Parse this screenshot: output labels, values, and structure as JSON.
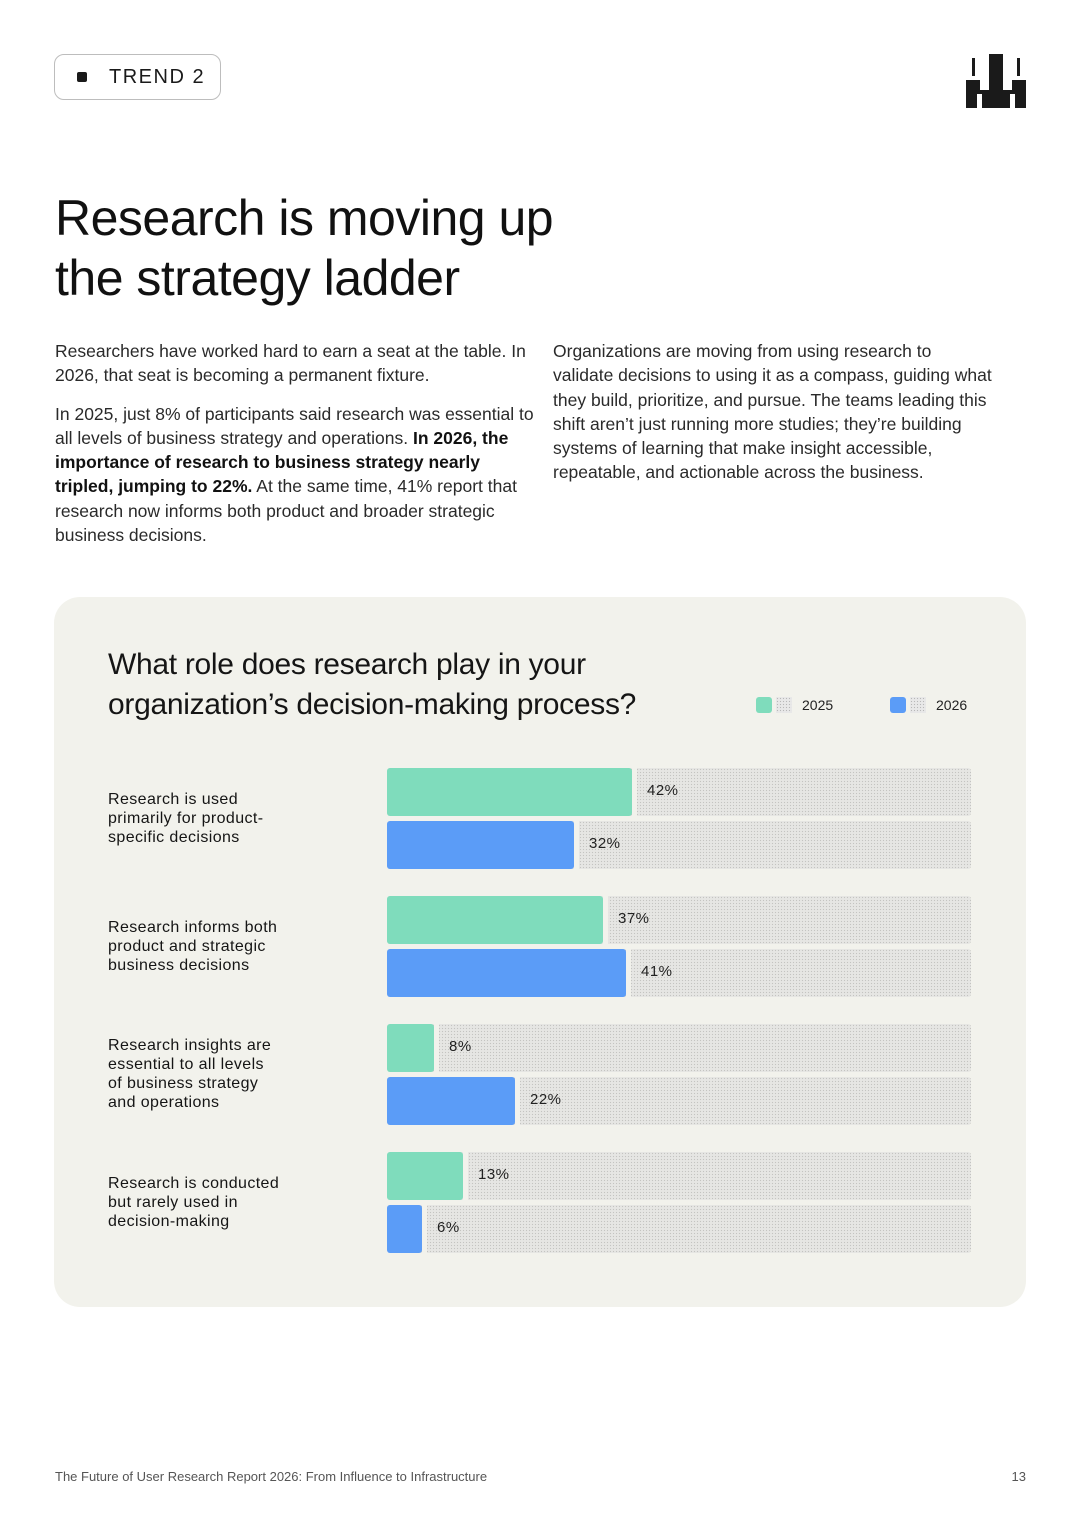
{
  "tag": {
    "label": "TREND 2"
  },
  "logo": {
    "icon": "brand-logo-icon"
  },
  "title": {
    "line1": "Research is moving up",
    "line2": "the strategy ladder"
  },
  "intro": {
    "left_p1": "Researchers have worked hard to earn a seat at the table. In 2026, that seat is becoming a permanent fixture.",
    "left_p2_a": "In 2025, just 8% of participants said research was essential to all levels of business strategy and operations. ",
    "left_p2_bold": "In 2026, the importance of research to business strategy nearly tripled, jumping to 22%.",
    "left_p2_b": " At the same time, 41% report that research now informs both product and broader strategic business decisions.",
    "right_p1": "Organizations are moving from using research to validate decisions to using it as a compass, guiding what they build, prioritize, and pursue. The teams leading this shift aren’t just running more studies; they’re building systems of learning that make insight accessible, repeatable, and actionable across the business."
  },
  "chart_data": {
    "type": "bar",
    "orientation": "horizontal",
    "title": "What role does research play in your organization’s decision-making process?",
    "categories": [
      "Research is used primarily for product-specific decisions",
      "Research informs both product and strategic business decisions",
      "Research insights are essential to all levels of business strategy and operations",
      "Research is conducted but rarely used in decision-making"
    ],
    "category_labels": [
      "Research is used\nprimarily for product-\nspecific decisions",
      "Research informs both\nproduct and strategic\nbusiness decisions",
      "Research insights are\nessential to all levels\nof business strategy\nand operations",
      "Research is conducted\nbut rarely used in\ndecision-making"
    ],
    "series": [
      {
        "name": "2025",
        "values": [
          42,
          37,
          8,
          13
        ],
        "labels": [
          "42%",
          "37%",
          "8%",
          "13%"
        ]
      },
      {
        "name": "2026",
        "values": [
          32,
          41,
          22,
          6
        ],
        "labels": [
          "32%",
          "41%",
          "22%",
          "6%"
        ]
      }
    ],
    "xlim": [
      0,
      100
    ],
    "legend": "top-right",
    "grid": false,
    "colors": {
      "2025": "#7fdcbc",
      "2026": "#5b9cf7"
    }
  },
  "footer": {
    "report": "The Future of User Research Report 2026: From Influence to Infrastructure",
    "page": "13"
  }
}
